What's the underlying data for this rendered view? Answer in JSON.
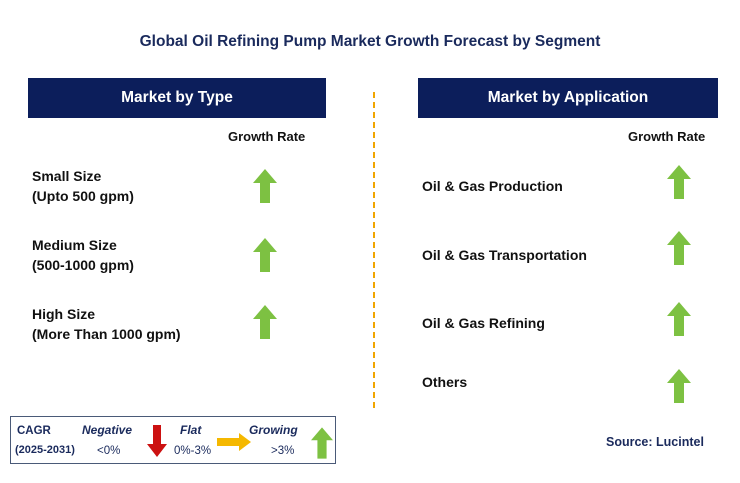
{
  "title": "Global Oil Refining Pump Market Growth Forecast by Segment",
  "left_panel": {
    "header": "Market by Type",
    "column_header": "Growth Rate",
    "items": [
      {
        "line1": "Small Size",
        "line2": "(Upto 500 gpm)",
        "trend": "growing"
      },
      {
        "line1": "Medium Size",
        "line2": "(500-1000 gpm)",
        "trend": "growing"
      },
      {
        "line1": "High Size",
        "line2": "(More Than 1000 gpm)",
        "trend": "growing"
      }
    ]
  },
  "right_panel": {
    "header": "Market by Application",
    "column_header": "Growth Rate",
    "items": [
      {
        "label": "Oil & Gas Production",
        "trend": "growing"
      },
      {
        "label": "Oil & Gas Transportation",
        "trend": "growing"
      },
      {
        "label": "Oil & Gas Refining",
        "trend": "growing"
      },
      {
        "label": "Others",
        "trend": "growing"
      }
    ]
  },
  "legend": {
    "cagr_label": "CAGR",
    "period": "(2025-2031)",
    "negative_label": "Negative",
    "negative_range": "<0%",
    "flat_label": "Flat",
    "flat_range": "0%-3%",
    "growing_label": "Growing",
    "growing_range": ">3%"
  },
  "source": "Source: Lucintel",
  "colors": {
    "header_bg": "#0c1e5b",
    "title_text": "#1a2a5c",
    "growing_arrow": "#7dc142",
    "negative_arrow": "#cc1111",
    "flat_arrow": "#f5b800",
    "divider": "#f0a500"
  }
}
